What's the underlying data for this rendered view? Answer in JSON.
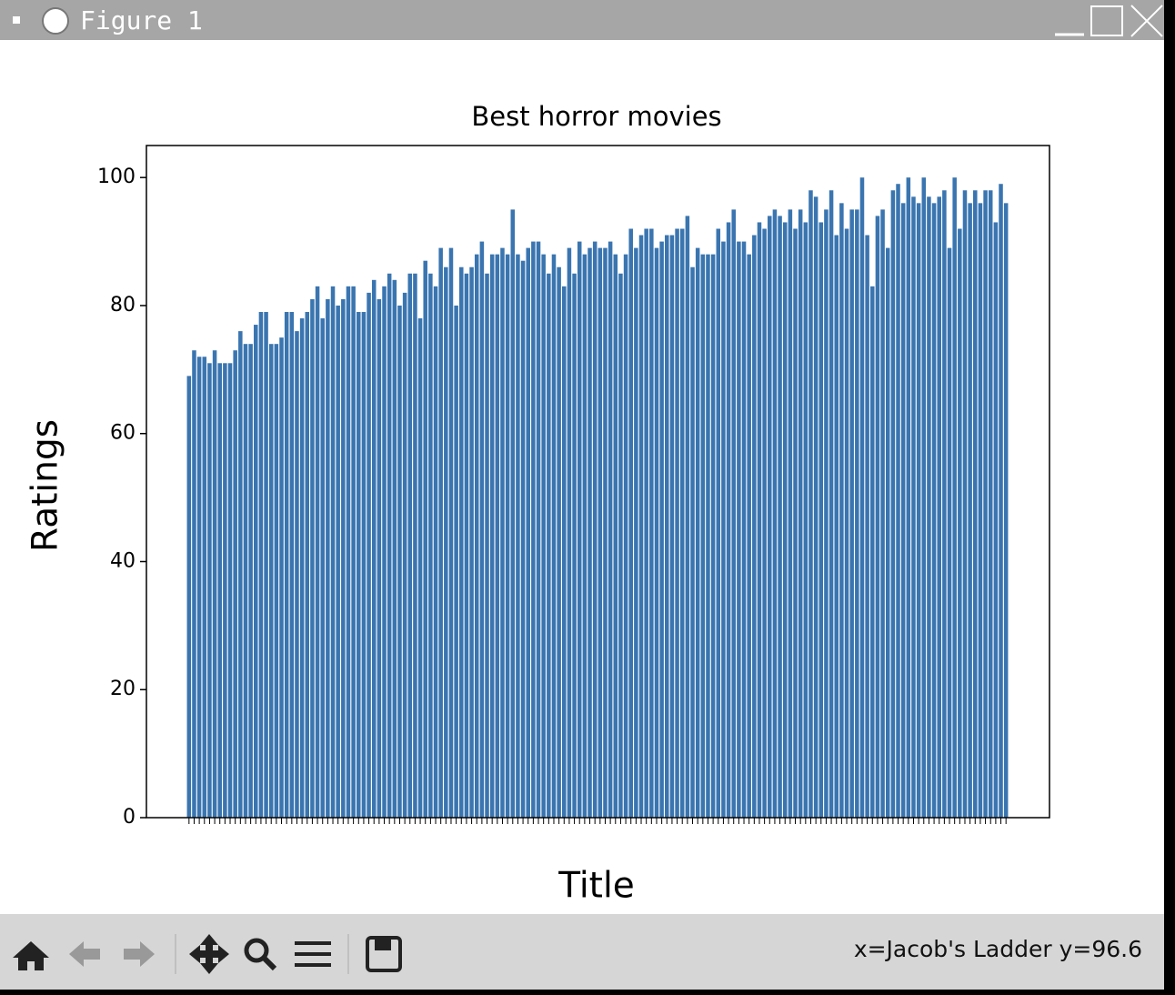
{
  "window_title": "Figure 1",
  "status": "x=Jacob's Ladder y=96.6",
  "chart_data": {
    "type": "bar",
    "title": "Best horror movies",
    "x_label": "Title",
    "y_label": "Ratings",
    "color": "#3a75b0",
    "categories": [
      null,
      null,
      null,
      null,
      null,
      null,
      null,
      null,
      null,
      null,
      null,
      null,
      null,
      null,
      null,
      null,
      null,
      null,
      null,
      null,
      null,
      null,
      null,
      null,
      null,
      null,
      null,
      null,
      null,
      null,
      null,
      null,
      null,
      null,
      null,
      null,
      null,
      null,
      null,
      null,
      null,
      null,
      null,
      null,
      null,
      null,
      null,
      null,
      null,
      null,
      null,
      null,
      null,
      null,
      null,
      null,
      null,
      null,
      null,
      null,
      null,
      null,
      null,
      null,
      null,
      null,
      null,
      null,
      null,
      null,
      null,
      null,
      null,
      null,
      null,
      null,
      null,
      null,
      null,
      null,
      null,
      null,
      null,
      null,
      null,
      null,
      null,
      null,
      null,
      null,
      null,
      null,
      null,
      null,
      null,
      null,
      null,
      null,
      null,
      null,
      null,
      null,
      null,
      null,
      null,
      null,
      null,
      null,
      null,
      null,
      null,
      null,
      null,
      null,
      null,
      null,
      null,
      null,
      null,
      null,
      null,
      null,
      null,
      null,
      null,
      null,
      null,
      null,
      null,
      null,
      null,
      null,
      null,
      null,
      null,
      null,
      null,
      null,
      null,
      null,
      null,
      null,
      null,
      null,
      null,
      null,
      null,
      null,
      null,
      null,
      null,
      null,
      null,
      null,
      null,
      null,
      null,
      null,
      null,
      null
    ],
    "values": [
      69,
      73,
      72,
      72,
      71,
      73,
      71,
      71,
      71,
      73,
      76,
      74,
      74,
      77,
      79,
      79,
      74,
      74,
      75,
      79,
      79,
      76,
      78,
      79,
      81,
      83,
      78,
      81,
      83,
      80,
      81,
      83,
      83,
      79,
      79,
      82,
      84,
      81,
      83,
      85,
      84,
      80,
      82,
      85,
      85,
      78,
      87,
      85,
      83,
      89,
      86,
      89,
      80,
      86,
      85,
      86,
      88,
      90,
      85,
      88,
      88,
      89,
      88,
      95,
      88,
      87,
      89,
      90,
      90,
      88,
      85,
      88,
      86,
      83,
      89,
      85,
      90,
      88,
      89,
      90,
      89,
      89,
      90,
      88,
      85,
      88,
      92,
      89,
      91,
      92,
      92,
      89,
      90,
      91,
      91,
      92,
      92,
      94,
      86,
      89,
      88,
      88,
      88,
      92,
      90,
      93,
      95,
      90,
      90,
      88,
      91,
      93,
      92,
      94,
      95,
      94,
      93,
      95,
      92,
      95,
      93,
      98,
      97,
      93,
      95,
      98,
      91,
      96,
      92,
      95,
      95,
      100,
      91,
      83,
      94,
      95,
      89,
      98,
      99,
      96,
      100,
      97,
      96,
      100,
      97,
      96,
      97,
      98,
      89,
      100,
      92,
      98,
      96,
      98,
      96,
      98,
      98,
      93,
      99,
      96
    ],
    "ylim": [
      0,
      105
    ],
    "yticks": [
      0,
      20,
      40,
      60,
      80,
      100
    ]
  }
}
